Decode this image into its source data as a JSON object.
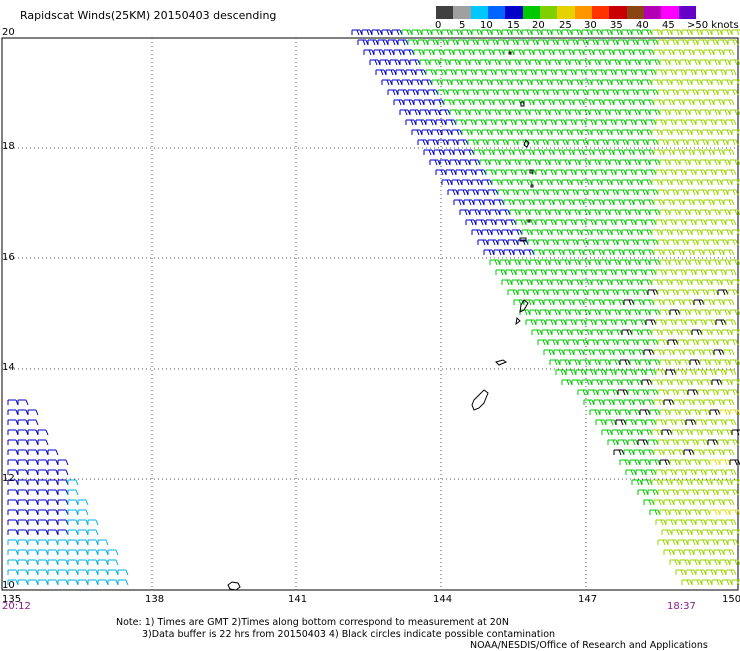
{
  "title": "Rapidscat Winds(25KM) 20150403 descending",
  "colorbar": {
    "colors": [
      "#404040",
      "#a0a0a0",
      "#00c8ff",
      "#0064ff",
      "#0000c8",
      "#00c800",
      "#7fd000",
      "#e6d200",
      "#ff9600",
      "#ff3200",
      "#c80000",
      "#8b4513",
      "#b400b4",
      "#ff00ff",
      "#6400c8"
    ],
    "labels": [
      "0",
      "5",
      "10",
      "15",
      "20",
      "25",
      "30",
      "35",
      "40",
      "45",
      ">50 knots"
    ]
  },
  "latitude_labels": [
    "20",
    "18",
    "16",
    "14",
    "12",
    "10"
  ],
  "longitude_labels": [
    "135",
    "138",
    "141",
    "144",
    "147",
    "150"
  ],
  "time_start": "20:12",
  "time_end": "18:37",
  "notes": [
    "Note: 1) Times are GMT 2)Times along bottom correspond to measurement at 20N",
    "3)Data buffer is 22 hrs from 20150403 4) Black circles indicate possible contamination"
  ],
  "credit": "NOAA/NESDIS/Office of Research and Applications",
  "wind_colors": {
    "slow": "#00b0e0",
    "medium": "#0000c8",
    "moderate": "#00c800",
    "fresh": "#9ad400",
    "strong": "#e0e020",
    "rainflag": "#000000"
  }
}
